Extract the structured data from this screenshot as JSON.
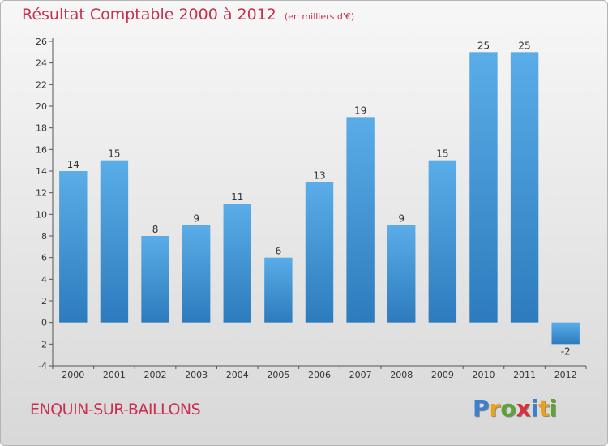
{
  "header": {
    "title": "Résultat Comptable 2000 à 2012",
    "subtitle": "(en milliers d'€)"
  },
  "footer": {
    "commune": "ENQUIN-SUR-BAILLONS",
    "logo_letters": [
      {
        "ch": "P",
        "color": "#3a7fd0"
      },
      {
        "ch": "r",
        "color": "#e8a21c"
      },
      {
        "ch": "o",
        "color": "#5aa534"
      },
      {
        "ch": "x",
        "color": "#d93040"
      },
      {
        "ch": "i",
        "color": "#3a7fd0"
      },
      {
        "ch": "t",
        "color": "#e8a21c"
      },
      {
        "ch": "i",
        "color": "#5aa534"
      }
    ]
  },
  "chart_data": {
    "type": "bar",
    "categories": [
      "2000",
      "2001",
      "2002",
      "2003",
      "2004",
      "2005",
      "2006",
      "2007",
      "2008",
      "2009",
      "2010",
      "2011",
      "2012"
    ],
    "values": [
      14,
      15,
      8,
      9,
      11,
      6,
      13,
      19,
      9,
      15,
      25,
      25,
      -2
    ],
    "title": "Résultat Comptable 2000 à 2012",
    "xlabel": "",
    "ylabel": "",
    "ylim": [
      -4,
      26
    ],
    "yticks": [
      -4,
      -2,
      0,
      2,
      4,
      6,
      8,
      10,
      12,
      14,
      16,
      18,
      20,
      22,
      24,
      26
    ],
    "grid": false,
    "bar_color_light": "#5aade8",
    "bar_color_dark": "#2d7bbd"
  }
}
